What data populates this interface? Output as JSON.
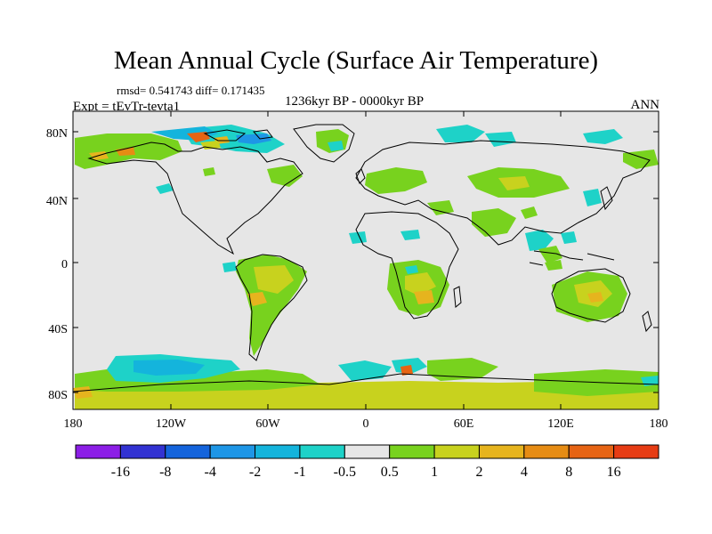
{
  "title": "Mean Annual Cycle (Surface Air Temperature)",
  "stats": "rmsd= 0.541743 diff= 0.171435",
  "experiment": "Expt = tEvTr-tevta1",
  "period": "1236kyr BP - 0000kyr BP",
  "season": "ANN",
  "lat_labels": [
    "80N",
    "40N",
    "0",
    "40S",
    "80S"
  ],
  "lon_labels": [
    "180",
    "120W",
    "60W",
    "0",
    "60E",
    "120E",
    "180"
  ],
  "colorbar": {
    "colors": [
      "#8c1ee6",
      "#3232d2",
      "#1464dc",
      "#1e96e6",
      "#14b4dc",
      "#1ed2c8",
      "#e6e6e6",
      "#78d21e",
      "#c8d21e",
      "#e6b41e",
      "#e68c14",
      "#e66414",
      "#e63c14"
    ],
    "labels": [
      "-16",
      "-8",
      "-4",
      "-2",
      "-1",
      "-0.5",
      "0.5",
      "1",
      "2",
      "4",
      "8",
      "16"
    ]
  },
  "colors": {
    "background": "#e6e6e6",
    "coast": "#000000"
  }
}
